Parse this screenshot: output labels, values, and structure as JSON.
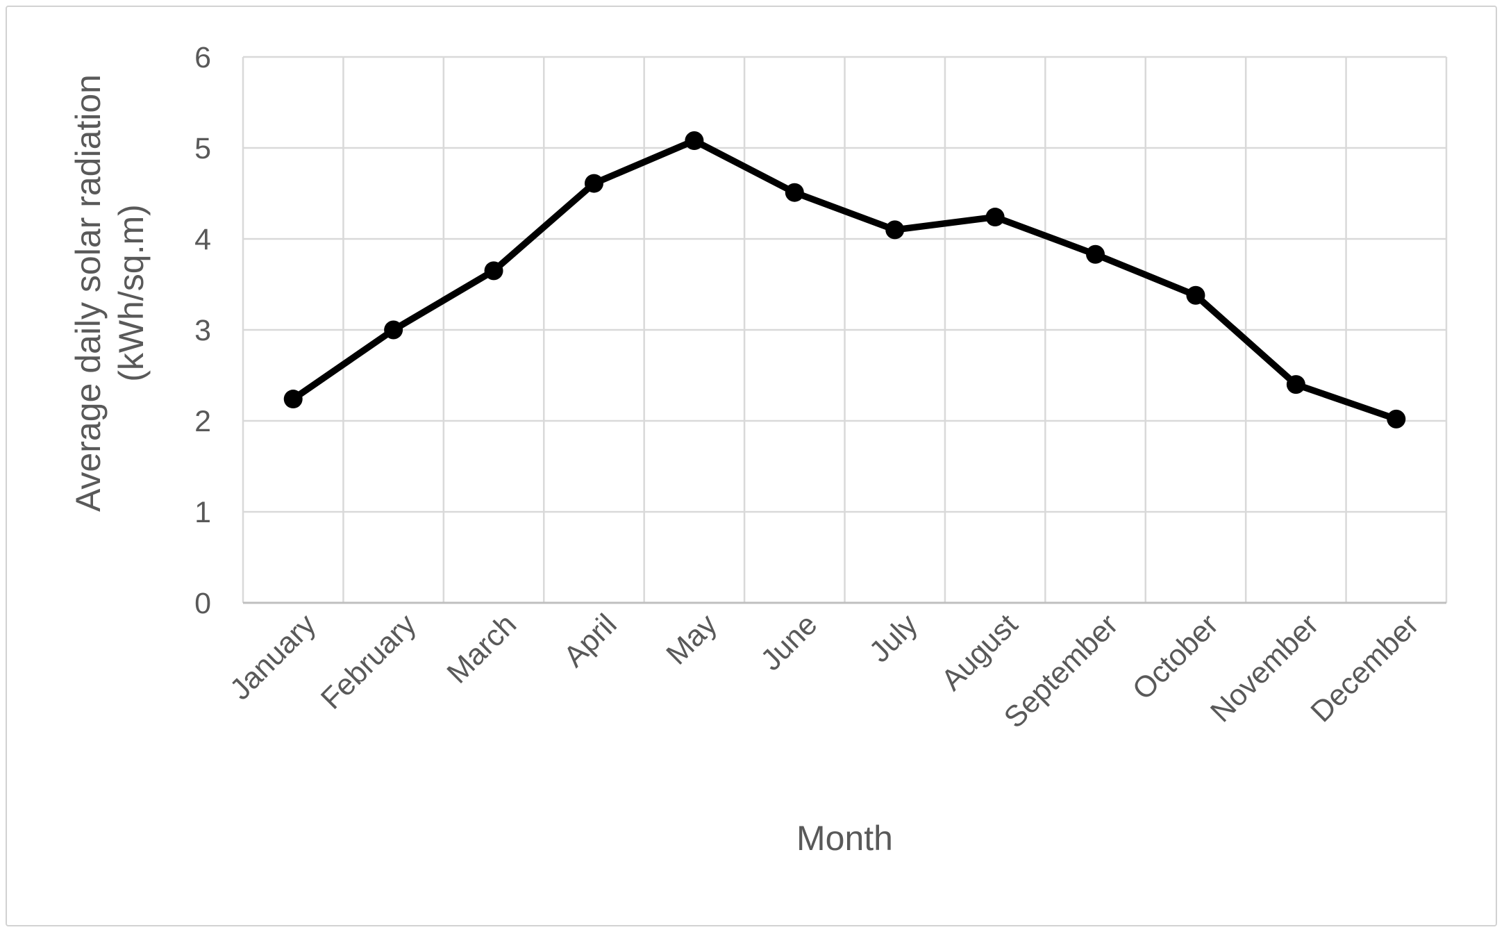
{
  "figure": {
    "background_color": "#ffffff",
    "frame_border_color": "#d2d2d2"
  },
  "chart_data": {
    "type": "line",
    "title": "",
    "categories": [
      "January",
      "February",
      "March",
      "April",
      "May",
      "June",
      "July",
      "August",
      "September",
      "October",
      "November",
      "December"
    ],
    "series": [
      {
        "name": "Average daily solar radiation",
        "values": [
          2.24,
          3.0,
          3.65,
          4.61,
          5.08,
          4.51,
          4.1,
          4.24,
          3.83,
          3.38,
          2.4,
          2.02
        ]
      }
    ],
    "xlabel": "Month",
    "ylabel_line1": "Average daily solar radiation",
    "ylabel_line2": "(kWh/sq.m)",
    "ylim": [
      0,
      6
    ],
    "yticks": [
      0,
      1,
      2,
      3,
      4,
      5,
      6
    ],
    "grid": true,
    "legend_position": "none",
    "x_tick_rotation_deg": -45,
    "line_color": "#000000",
    "marker_shape": "circle",
    "marker_color": "#000000",
    "gridline_color": "#d9d9d9",
    "axis_line_color": "#bfbfbf",
    "label_color": "#595959"
  }
}
